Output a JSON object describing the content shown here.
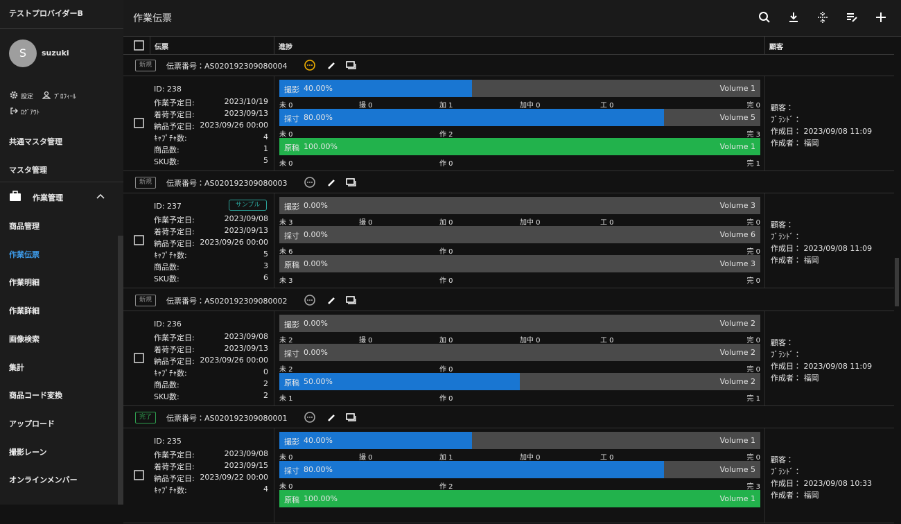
{
  "sidebar": {
    "provider": "テストプロバイダーB",
    "avatar": "S",
    "user": "suzuki",
    "settings": "設定",
    "profile": "ﾌﾟﾛﾌｨｰﾙ",
    "logout": "ﾛｸﾞｱｳﾄ",
    "menu": [
      "共通マスタ管理",
      "マスタ管理"
    ],
    "group": "作業管理",
    "submenu": [
      "商品管理",
      "作業伝票",
      "作業明細",
      "作業詳細",
      "画像検索",
      "集計",
      "商品コード変換",
      "アップロード",
      "撮影レーン",
      "オンラインメンバー"
    ],
    "active": 1
  },
  "header": {
    "title": "作業伝票"
  },
  "columns": [
    "伝票",
    "進捗",
    "顧客"
  ],
  "tickets": [
    {
      "status": "新規",
      "status_color": "#8a8a8a",
      "number": "伝票番号：AS020192309080004",
      "comment_unread": true,
      "id": "ID: 238",
      "fields": [
        [
          "作業予定日:",
          "2023/10/19"
        ],
        [
          "着荷予定日:",
          "2023/09/13"
        ],
        [
          "納品予定日:",
          "2023/09/26 00:00"
        ],
        [
          "ｷｬﾌﾟﾁｬ数:",
          "4"
        ],
        [
          "商品数:",
          "1"
        ],
        [
          "SKU数:",
          "5"
        ]
      ],
      "progress": [
        {
          "label": "撮影",
          "value": 40,
          "value_label": "40.00%",
          "volume": "Volume 1",
          "counts": [
            "未 0",
            "撮 0",
            "加 1",
            "加中 0",
            "工 0",
            "完 0"
          ]
        },
        {
          "label": "採寸",
          "value": 80,
          "value_label": "80.00%",
          "volume": "Volume 5",
          "counts": [
            "未 0",
            "作 2",
            "完 3"
          ]
        },
        {
          "label": "原稿",
          "value": 100,
          "value_label": "100.00%",
          "volume": "Volume 1",
          "counts": [
            "未 0",
            "作 0",
            "完 1"
          ]
        }
      ],
      "customer": [
        "顧客：",
        "ﾌﾞﾗﾝﾄﾞ：",
        "作成日： 2023/09/08 11:09",
        "作成者： 福岡"
      ]
    },
    {
      "status": "新規",
      "status_color": "#8a8a8a",
      "number": "伝票番号：AS020192309080003",
      "comment_unread": false,
      "id": "ID: 237",
      "tag": "サンプル",
      "fields": [
        [
          "作業予定日:",
          "2023/09/08"
        ],
        [
          "着荷予定日:",
          "2023/09/13"
        ],
        [
          "納品予定日:",
          "2023/09/26 00:00"
        ],
        [
          "ｷｬﾌﾟﾁｬ数:",
          "5"
        ],
        [
          "商品数:",
          "3"
        ],
        [
          "SKU数:",
          "6"
        ]
      ],
      "progress": [
        {
          "label": "撮影",
          "value": 0,
          "value_label": "0.00%",
          "volume": "Volume 3",
          "counts": [
            "未 3",
            "撮 0",
            "加 0",
            "加中 0",
            "工 0",
            "完 0"
          ]
        },
        {
          "label": "採寸",
          "value": 0,
          "value_label": "0.00%",
          "volume": "Volume 6",
          "counts": [
            "未 6",
            "作 0",
            "完 0"
          ]
        },
        {
          "label": "原稿",
          "value": 0,
          "value_label": "0.00%",
          "volume": "Volume 3",
          "counts": [
            "未 3",
            "作 0",
            "完 0"
          ]
        }
      ],
      "customer": [
        "顧客：",
        "ﾌﾞﾗﾝﾄﾞ：",
        "作成日： 2023/09/08 11:09",
        "作成者： 福岡"
      ]
    },
    {
      "status": "新規",
      "status_color": "#8a8a8a",
      "number": "伝票番号：AS020192309080002",
      "comment_unread": false,
      "id": "ID: 236",
      "fields": [
        [
          "作業予定日:",
          "2023/09/08"
        ],
        [
          "着荷予定日:",
          "2023/09/13"
        ],
        [
          "納品予定日:",
          "2023/09/26 00:00"
        ],
        [
          "ｷｬﾌﾟﾁｬ数:",
          "0"
        ],
        [
          "商品数:",
          "2"
        ],
        [
          "SKU数:",
          "2"
        ]
      ],
      "progress": [
        {
          "label": "撮影",
          "value": 0,
          "value_label": "0.00%",
          "volume": "Volume 2",
          "counts": [
            "未 2",
            "撮 0",
            "加 0",
            "加中 0",
            "工 0",
            "完 0"
          ]
        },
        {
          "label": "採寸",
          "value": 0,
          "value_label": "0.00%",
          "volume": "Volume 2",
          "counts": [
            "未 2",
            "作 0",
            "完 0"
          ]
        },
        {
          "label": "原稿",
          "value": 50,
          "value_label": "50.00%",
          "volume": "Volume 2",
          "counts": [
            "未 1",
            "作 0",
            "完 1"
          ]
        }
      ],
      "customer": [
        "顧客：",
        "ﾌﾞﾗﾝﾄﾞ：",
        "作成日： 2023/09/08 11:09",
        "作成者： 福岡"
      ]
    },
    {
      "status": "完了",
      "status_color": "#2e9e4e",
      "number": "伝票番号：AS020192309080001",
      "comment_unread": false,
      "id": "ID: 235",
      "fields": [
        [
          "作業予定日:",
          "2023/09/08"
        ],
        [
          "着荷予定日:",
          "2023/09/15"
        ],
        [
          "納品予定日:",
          "2023/09/22 00:00"
        ],
        [
          "ｷｬﾌﾟﾁｬ数:",
          "4"
        ]
      ],
      "progress": [
        {
          "label": "撮影",
          "value": 40,
          "value_label": "40.00%",
          "volume": "Volume 1",
          "counts": [
            "未 0",
            "撮 0",
            "加 1",
            "加中 0",
            "工 0",
            "完 0"
          ]
        },
        {
          "label": "採寸",
          "value": 80,
          "value_label": "80.00%",
          "volume": "Volume 5",
          "counts": [
            "未 0",
            "作 2",
            "完 3"
          ]
        },
        {
          "label": "原稿",
          "value": 100,
          "value_label": "100.00%",
          "volume": "Volume 1",
          "counts": []
        }
      ],
      "customer": [
        "顧客：",
        "ﾌﾞﾗﾝﾄﾞ：",
        "作成日： 2023/09/08 10:33",
        "作成者： 福岡"
      ]
    }
  ]
}
